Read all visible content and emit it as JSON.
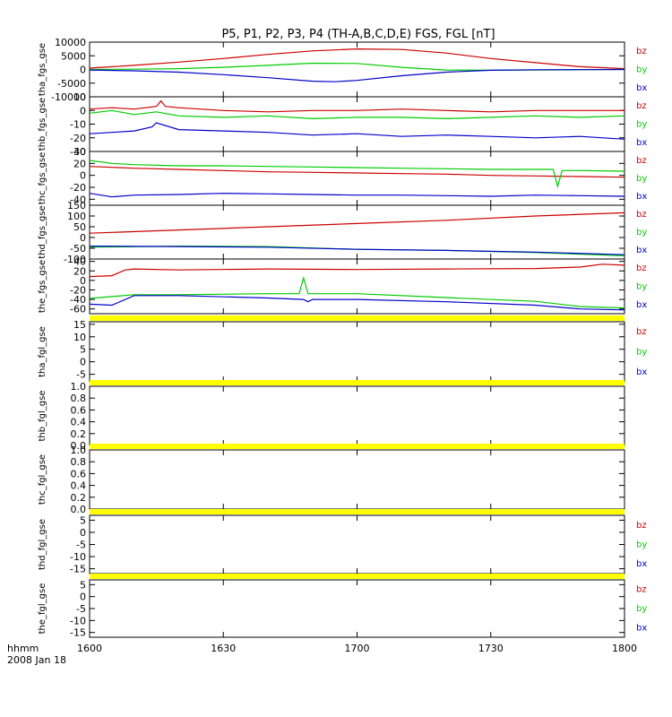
{
  "title": "P5, P1, P2, P3, P4 (TH-A,B,C,D,E) FGS, FGL [nT]",
  "footer": {
    "line1": "hhmm",
    "line2": "2008 Jan 18"
  },
  "colors": {
    "bz": "#cc0000",
    "by": "#00cc00",
    "bx": "#0000cc",
    "nodata": "#ffff00",
    "axis": "#000000"
  },
  "chart_data": [
    {
      "type": "line",
      "panel": "tha_fgs_gse",
      "ylabel": "tha_fgs_gse",
      "ylim": [
        -10000,
        10000
      ],
      "yticks": [
        {
          "v": 10000,
          "label": "10000"
        },
        {
          "v": 5000,
          "label": "5000"
        },
        {
          "v": 0,
          "label": "0"
        },
        {
          "v": -5000,
          "label": "-5000"
        },
        {
          "v": -10000,
          "label": "-10000"
        }
      ],
      "legend": [
        "bz",
        "by",
        "bx"
      ],
      "series": [
        {
          "name": "bz",
          "x": [
            0,
            10,
            20,
            30,
            40,
            50,
            60,
            70,
            80,
            90,
            100,
            110,
            120
          ],
          "y": [
            500,
            1500,
            2700,
            4000,
            5500,
            6800,
            7500,
            7300,
            6000,
            4000,
            2500,
            1000,
            300
          ]
        },
        {
          "name": "by",
          "x": [
            0,
            10,
            20,
            30,
            40,
            50,
            60,
            70,
            80,
            90,
            100,
            110,
            120
          ],
          "y": [
            0,
            100,
            300,
            800,
            1500,
            2300,
            2200,
            800,
            -200,
            -300,
            -200,
            -100,
            0
          ]
        },
        {
          "name": "bx",
          "x": [
            0,
            10,
            20,
            30,
            40,
            50,
            55,
            60,
            70,
            80,
            90,
            100,
            110,
            120
          ],
          "y": [
            -200,
            -500,
            -1000,
            -1900,
            -3000,
            -4300,
            -4500,
            -4000,
            -2300,
            -1000,
            -300,
            -100,
            -50,
            0
          ]
        }
      ]
    },
    {
      "type": "line",
      "panel": "thb_fgs_gse",
      "ylabel": "thb_fgs_gse",
      "ylim": [
        -30,
        10
      ],
      "yticks": [
        {
          "v": 10,
          "label": "10"
        },
        {
          "v": 0,
          "label": "0"
        },
        {
          "v": -10,
          "label": "-10"
        },
        {
          "v": -20,
          "label": "-20"
        },
        {
          "v": -30,
          "label": "-30"
        }
      ],
      "legend": [
        "bz",
        "by",
        "bx"
      ],
      "series": [
        {
          "name": "bz",
          "x": [
            0,
            5,
            10,
            15,
            16,
            17,
            20,
            30,
            40,
            50,
            60,
            70,
            80,
            90,
            100,
            110,
            120
          ],
          "y": [
            1,
            2,
            1,
            3,
            7,
            3,
            2,
            0,
            -1,
            0,
            0,
            1,
            0,
            -1,
            0,
            0,
            0
          ]
        },
        {
          "name": "by",
          "x": [
            0,
            5,
            10,
            15,
            20,
            30,
            40,
            50,
            60,
            70,
            80,
            90,
            100,
            110,
            120
          ],
          "y": [
            -2,
            0,
            -3,
            -1,
            -4,
            -5,
            -4,
            -6,
            -5,
            -5,
            -6,
            -5,
            -4,
            -5,
            -4
          ]
        },
        {
          "name": "bx",
          "x": [
            0,
            5,
            10,
            14,
            15,
            20,
            30,
            40,
            50,
            60,
            70,
            80,
            90,
            100,
            110,
            120
          ],
          "y": [
            -17,
            -16,
            -15,
            -12,
            -9,
            -14,
            -15,
            -16,
            -18,
            -17,
            -19,
            -18,
            -19,
            -20,
            -19,
            -21
          ]
        }
      ]
    },
    {
      "type": "line",
      "panel": "thc_fgs_gse",
      "ylabel": "thc_fgs_gse",
      "ylim": [
        -50,
        40
      ],
      "yticks": [
        {
          "v": 40,
          "label": "40"
        },
        {
          "v": 20,
          "label": "20"
        },
        {
          "v": 0,
          "label": "0"
        },
        {
          "v": -20,
          "label": "-20"
        },
        {
          "v": -40,
          "label": "-40"
        }
      ],
      "legend": [
        "bz",
        "by",
        "bx"
      ],
      "series": [
        {
          "name": "bz",
          "x": [
            0,
            10,
            20,
            30,
            40,
            50,
            60,
            70,
            80,
            90,
            100,
            110,
            120
          ],
          "y": [
            15,
            12,
            10,
            8,
            6,
            5,
            4,
            3,
            2,
            0,
            -1,
            -2,
            -3
          ]
        },
        {
          "name": "by",
          "x": [
            0,
            5,
            10,
            20,
            30,
            40,
            50,
            60,
            70,
            80,
            90,
            100,
            104,
            105,
            106,
            110,
            120
          ],
          "y": [
            25,
            20,
            18,
            16,
            16,
            15,
            14,
            13,
            12,
            11,
            10,
            10,
            10,
            -18,
            8,
            8,
            7
          ]
        },
        {
          "name": "bx",
          "x": [
            0,
            5,
            10,
            20,
            30,
            40,
            50,
            60,
            70,
            80,
            90,
            100,
            110,
            120
          ],
          "y": [
            -30,
            -36,
            -33,
            -32,
            -30,
            -31,
            -32,
            -33,
            -33,
            -34,
            -35,
            -33,
            -34,
            -35
          ]
        }
      ]
    },
    {
      "type": "line",
      "panel": "thd_fgs_gse",
      "ylabel": "thd_fgs_gse",
      "ylim": [
        -100,
        150
      ],
      "yticks": [
        {
          "v": 150,
          "label": "150"
        },
        {
          "v": 100,
          "label": "100"
        },
        {
          "v": 50,
          "label": "50"
        },
        {
          "v": 0,
          "label": "0"
        },
        {
          "v": -50,
          "label": "-50"
        },
        {
          "v": -100,
          "label": "-100"
        }
      ],
      "legend": [
        "bz",
        "by",
        "bx"
      ],
      "series": [
        {
          "name": "bz",
          "x": [
            0,
            20,
            40,
            60,
            80,
            100,
            120
          ],
          "y": [
            20,
            35,
            50,
            65,
            80,
            100,
            115
          ]
        },
        {
          "name": "by",
          "x": [
            0,
            20,
            40,
            60,
            80,
            100,
            120
          ],
          "y": [
            -45,
            -40,
            -42,
            -55,
            -60,
            -70,
            -85
          ]
        },
        {
          "name": "bx",
          "x": [
            0,
            20,
            40,
            60,
            80,
            100,
            120
          ],
          "y": [
            -40,
            -42,
            -45,
            -55,
            -60,
            -68,
            -80
          ]
        }
      ]
    },
    {
      "type": "line",
      "panel": "the_fgs_gse",
      "ylabel": "the_fgs_gse",
      "ylim": [
        -70,
        45
      ],
      "yticks": [
        {
          "v": 40,
          "label": "40"
        },
        {
          "v": 20,
          "label": "20"
        },
        {
          "v": 0,
          "label": "0"
        },
        {
          "v": -20,
          "label": "-20"
        },
        {
          "v": -40,
          "label": "-40"
        },
        {
          "v": -60,
          "label": "-60"
        }
      ],
      "legend": [
        "bz",
        "by",
        "bx"
      ],
      "series": [
        {
          "name": "bz",
          "x": [
            0,
            5,
            8,
            10,
            20,
            40,
            60,
            80,
            100,
            110,
            115,
            120
          ],
          "y": [
            8,
            10,
            22,
            24,
            22,
            24,
            23,
            24,
            25,
            28,
            34,
            32
          ]
        },
        {
          "name": "by",
          "x": [
            0,
            5,
            10,
            20,
            40,
            47,
            48,
            49,
            60,
            80,
            100,
            110,
            120
          ],
          "y": [
            -38,
            -34,
            -30,
            -30,
            -28,
            -28,
            5,
            -28,
            -28,
            -36,
            -44,
            -55,
            -58
          ]
        },
        {
          "name": "bx",
          "x": [
            0,
            5,
            10,
            20,
            40,
            48,
            49,
            50,
            60,
            80,
            100,
            110,
            120
          ],
          "y": [
            -50,
            -52,
            -32,
            -32,
            -37,
            -40,
            -45,
            -40,
            -40,
            -45,
            -52,
            -60,
            -62
          ]
        }
      ]
    },
    {
      "type": "line",
      "panel": "tha_fgl_gse",
      "ylabel": "tha_fgl_gse",
      "ylim": [
        -8,
        16
      ],
      "yticks": [
        {
          "v": 15,
          "label": "15"
        },
        {
          "v": 10,
          "label": "10"
        },
        {
          "v": 5,
          "label": "5"
        },
        {
          "v": 0,
          "label": "0"
        },
        {
          "v": -5,
          "label": "-5"
        }
      ],
      "legend": [
        "bz",
        "by",
        "bx"
      ],
      "series": []
    },
    {
      "type": "line",
      "panel": "thb_fgl_gse",
      "ylabel": "thb_fgl_gse",
      "ylim": [
        0.0,
        1.0
      ],
      "yticks": [
        {
          "v": 1.0,
          "label": "1.0"
        },
        {
          "v": 0.8,
          "label": "0.8"
        },
        {
          "v": 0.6,
          "label": "0.6"
        },
        {
          "v": 0.4,
          "label": "0.4"
        },
        {
          "v": 0.2,
          "label": "0.2"
        },
        {
          "v": 0.0,
          "label": "0.0"
        }
      ],
      "legend": [],
      "series": []
    },
    {
      "type": "line",
      "panel": "thc_fgl_gse",
      "ylabel": "thc_fgl_gse",
      "ylim": [
        0.0,
        1.0
      ],
      "yticks": [
        {
          "v": 1.0,
          "label": "1.0"
        },
        {
          "v": 0.8,
          "label": "0.8"
        },
        {
          "v": 0.6,
          "label": "0.6"
        },
        {
          "v": 0.4,
          "label": "0.4"
        },
        {
          "v": 0.2,
          "label": "0.2"
        },
        {
          "v": 0.0,
          "label": "0.0"
        }
      ],
      "legend": [],
      "series": []
    },
    {
      "type": "line",
      "panel": "thd_fgl_gse",
      "ylabel": "thd_fgl_gse",
      "ylim": [
        -17,
        7
      ],
      "yticks": [
        {
          "v": 5,
          "label": "5"
        },
        {
          "v": 0,
          "label": "0"
        },
        {
          "v": -5,
          "label": "-5"
        },
        {
          "v": -10,
          "label": "-10"
        },
        {
          "v": -15,
          "label": "-15"
        }
      ],
      "legend": [
        "bz",
        "by",
        "bx"
      ],
      "series": []
    },
    {
      "type": "line",
      "panel": "the_fgl_gse",
      "ylabel": "the_fgl_gse",
      "ylim": [
        -17,
        7
      ],
      "yticks": [
        {
          "v": 5,
          "label": "5"
        },
        {
          "v": 0,
          "label": "0"
        },
        {
          "v": -5,
          "label": "-5"
        },
        {
          "v": -10,
          "label": "-10"
        },
        {
          "v": -15,
          "label": "-15"
        }
      ],
      "legend": [
        "bz",
        "by",
        "bx"
      ],
      "series": []
    }
  ],
  "xaxis": {
    "range": [
      0,
      120
    ],
    "ticks": [
      {
        "v": 0,
        "label": "1600"
      },
      {
        "v": 30,
        "label": "1630"
      },
      {
        "v": 60,
        "label": "1700"
      },
      {
        "v": 90,
        "label": "1730"
      },
      {
        "v": 120,
        "label": "1800"
      }
    ]
  }
}
